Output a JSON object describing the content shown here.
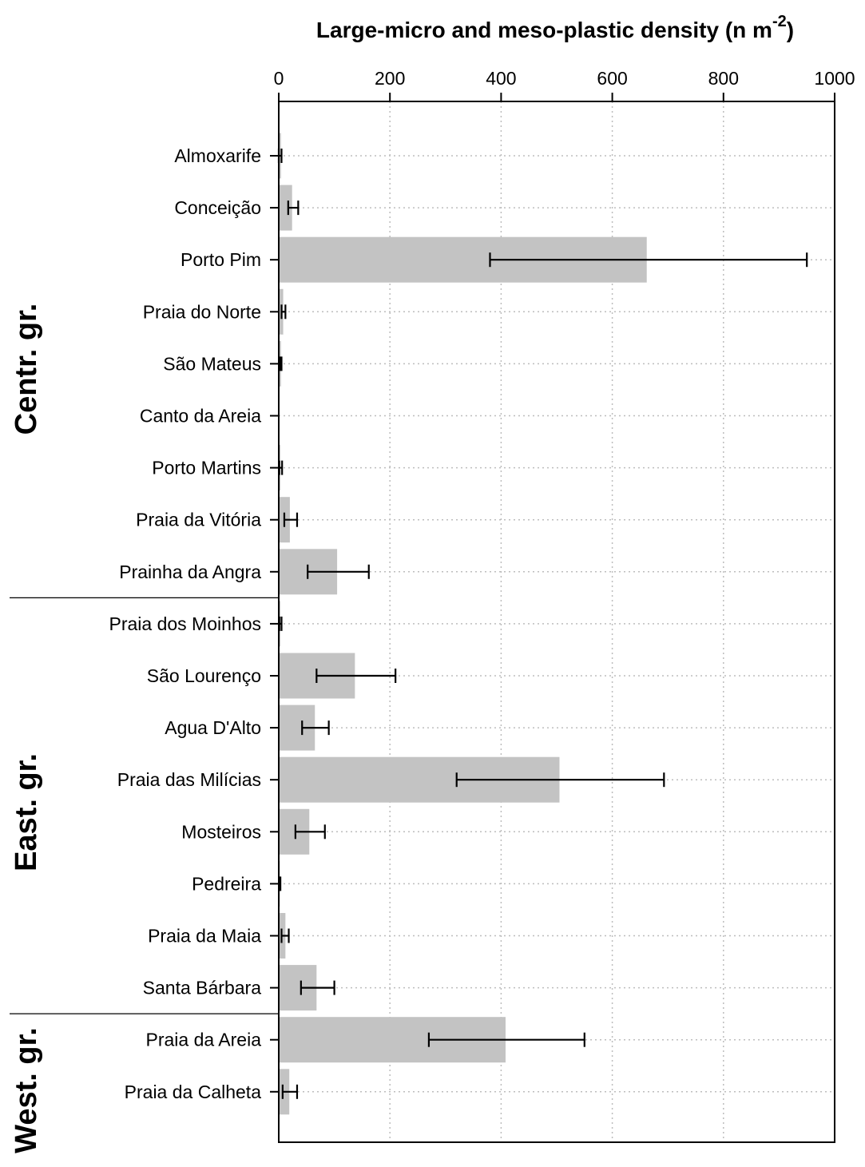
{
  "chart_data": {
    "type": "bar",
    "orientation": "horizontal",
    "title": "",
    "xlabel": "Large-micro and meso-plastic density (n m",
    "xlabel_superscript": "-2",
    "xlabel_suffix": ")",
    "xlim": [
      0,
      1000
    ],
    "xticks": [
      "0",
      "200",
      "400",
      "600",
      "800",
      "1000"
    ],
    "xtick_values": [
      0,
      200,
      400,
      600,
      800,
      1000
    ],
    "grid": true,
    "axis_position": "top",
    "bar_color": "#c3c3c3",
    "groups": [
      {
        "label": "Centr. gr.",
        "start": 0,
        "end": 8
      },
      {
        "label": "East. gr.",
        "start": 9,
        "end": 16
      },
      {
        "label": "West. gr.",
        "start": 17,
        "end": 18
      }
    ],
    "categories": [
      "Almoxarife",
      "Conceição",
      "Porto Pim",
      "Praia do Norte",
      "São Mateus",
      "Canto da Areia",
      "Porto Martins",
      "Praia da Vitória",
      "Prainha da Angra",
      "Praia dos Moinhos",
      "São Lourenço",
      "Agua D'Alto",
      "Praia das Milícias",
      "Mosteiros",
      "Pedreira",
      "Praia da Maia",
      "Santa Bárbara",
      "Praia da Areia",
      "Praia da Calheta"
    ],
    "values": [
      4,
      24,
      662,
      8,
      4,
      0,
      3,
      20,
      105,
      3,
      137,
      65,
      505,
      55,
      2,
      12,
      68,
      408,
      19
    ],
    "error_low": [
      0,
      17,
      380,
      5,
      2,
      0,
      1,
      10,
      52,
      1,
      68,
      42,
      320,
      30,
      1,
      5,
      40,
      270,
      7
    ],
    "error_high": [
      5,
      35,
      950,
      12,
      5,
      0,
      6,
      33,
      162,
      5,
      210,
      90,
      693,
      83,
      3,
      18,
      100,
      550,
      33
    ]
  }
}
